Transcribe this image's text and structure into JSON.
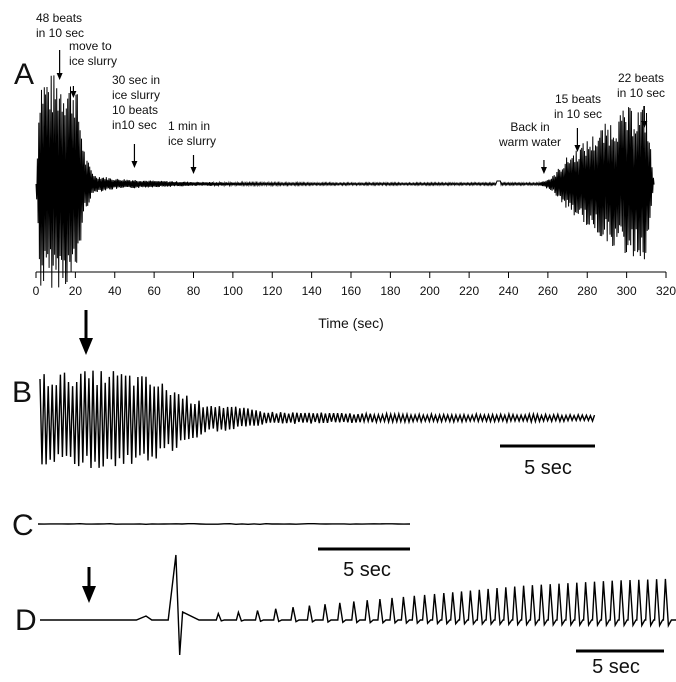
{
  "chart_data": [
    {
      "panel": "A",
      "type": "line",
      "xlabel": "Time (sec)",
      "ylabel": "",
      "xlim": [
        0,
        320
      ],
      "x_ticks": [
        0,
        20,
        40,
        60,
        80,
        100,
        120,
        140,
        160,
        180,
        200,
        220,
        240,
        260,
        280,
        300,
        320
      ],
      "grid": false,
      "annotations": [
        {
          "x": 12,
          "lines": [
            "48 beats",
            "in 10 sec"
          ]
        },
        {
          "x": 19,
          "lines": [
            "move to",
            "ice slurry"
          ]
        },
        {
          "x": 50,
          "lines": [
            "30 sec in",
            "ice slurry",
            "10 beats",
            "in10 sec"
          ]
        },
        {
          "x": 80,
          "lines": [
            "1 min in",
            "ice slurry"
          ]
        },
        {
          "x": 258,
          "lines": [
            "Back in",
            "warm water"
          ]
        },
        {
          "x": 275,
          "lines": [
            "15 beats",
            "in 10 sec"
          ]
        },
        {
          "x": 309,
          "lines": [
            "22 beats",
            "in 10 sec"
          ]
        }
      ],
      "series": [
        {
          "values_description_free": true,
          "x": [
            0,
            2,
            20,
            25,
            30,
            40,
            50,
            60,
            80,
            100,
            150,
            200,
            236,
            240,
            255,
            262,
            270,
            280,
            290,
            300,
            310,
            314
          ],
          "amplitude": [
            0,
            100,
            95,
            25,
            8,
            5,
            4,
            3,
            2,
            1.5,
            1,
            1,
            1,
            1,
            1,
            6,
            25,
            40,
            55,
            68,
            72,
            0
          ]
        }
      ]
    },
    {
      "panel": "B",
      "type": "line",
      "scale_bar": "5 sec",
      "series": [
        {
          "x": [
            0,
            8,
            12,
            18,
            25,
            40,
            52,
            60
          ],
          "amplitude": [
            60,
            65,
            55,
            20,
            8,
            5,
            5,
            4
          ]
        }
      ]
    },
    {
      "panel": "C",
      "type": "line",
      "scale_bar": "5 sec",
      "series": [
        {
          "x": [
            0,
            38
          ],
          "amplitude": [
            0,
            0
          ]
        }
      ]
    },
    {
      "panel": "D",
      "type": "line",
      "scale_bar": "5 sec",
      "series": [
        {
          "x": [
            0,
            5,
            10,
            20,
            30,
            40,
            50,
            60,
            66
          ],
          "amplitude": [
            0,
            1,
            2,
            8,
            18,
            28,
            38,
            44,
            46
          ]
        }
      ]
    }
  ],
  "panels": {
    "a": {
      "label": "A"
    },
    "b": {
      "label": "B",
      "scale": "5 sec"
    },
    "c": {
      "label": "C",
      "scale": "5 sec"
    },
    "d": {
      "label": "D",
      "scale": "5 sec"
    }
  },
  "colors": {
    "trace": "#000000",
    "background": "#ffffff"
  }
}
